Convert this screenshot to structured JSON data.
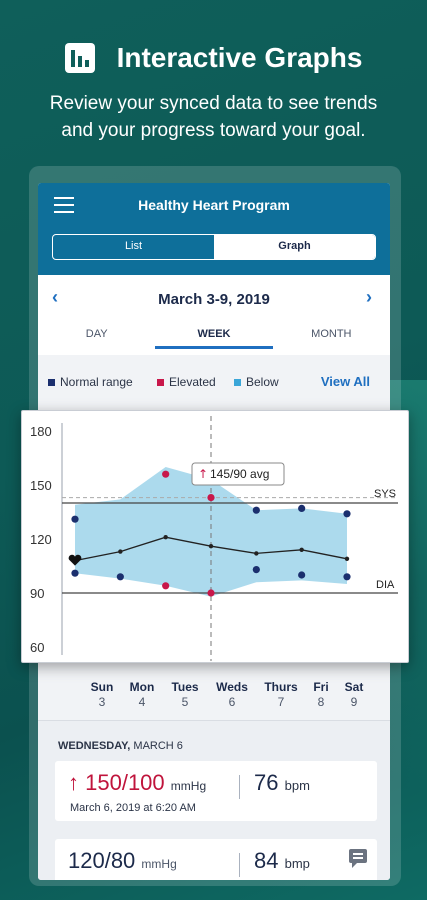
{
  "hero": {
    "title": "Interactive Graphs",
    "subtitle_line1": "Review your synced data to see trends",
    "subtitle_line2": "and your progress toward your goal."
  },
  "app": {
    "title": "Healthy Heart Program",
    "segments": {
      "list": "List",
      "graph": "Graph",
      "selected": "Graph"
    },
    "date_range": "March 3-9, 2019",
    "tabs": [
      "DAY",
      "WEEK",
      "MONTH"
    ],
    "active_tab": "WEEK",
    "legend": [
      {
        "label": "Normal range",
        "color": "#1b2f6e"
      },
      {
        "label": "Elevated",
        "color": "#c8174a"
      },
      {
        "label": "Below",
        "color": "#3aa6d8"
      }
    ],
    "view_all": "View All",
    "days": [
      {
        "name": "Sun",
        "date": "3"
      },
      {
        "name": "Mon",
        "date": "4"
      },
      {
        "name": "Tues",
        "date": "5"
      },
      {
        "name": "Weds",
        "date": "6"
      },
      {
        "name": "Thurs",
        "date": "7"
      },
      {
        "name": "Fri",
        "date": "8"
      },
      {
        "name": "Sat",
        "date": "9"
      }
    ],
    "detail": {
      "header_day": "WEDNESDAY,",
      "header_date": "MARCH 6",
      "reading1": {
        "bp": "150/100",
        "unit": "mmHg",
        "pulse": "76",
        "pulse_unit": "bpm",
        "timestamp": "March 6, 2019 at 6:20 AM"
      },
      "reading2": {
        "bp": "120/80",
        "unit": "mmHg",
        "pulse": "84",
        "pulse_unit": "bmp"
      }
    }
  },
  "chart_data": {
    "type": "line",
    "y_ticks": [
      "180",
      "150",
      "120",
      "90",
      "60"
    ],
    "ylim": [
      60,
      180
    ],
    "x_count": 7,
    "sys_label": "SYS",
    "dia_label": "DIA",
    "sys_threshold": 140,
    "dia_threshold": 90,
    "goal_line": 143,
    "band_top": [
      139,
      142,
      160,
      153,
      136,
      137,
      134
    ],
    "band_bottom": [
      101,
      98,
      94,
      88,
      96,
      97,
      95
    ],
    "avg_line": [
      108,
      113,
      121,
      116,
      112,
      114,
      109
    ],
    "systolic_points": [
      {
        "x": 0,
        "y": 131,
        "status": "normal"
      },
      {
        "x": 2,
        "y": 156,
        "status": "elevated"
      },
      {
        "x": 3,
        "y": 143,
        "status": "elevated"
      },
      {
        "x": 4,
        "y": 136,
        "status": "normal"
      },
      {
        "x": 5,
        "y": 137,
        "status": "normal"
      },
      {
        "x": 6,
        "y": 134,
        "status": "normal"
      }
    ],
    "diastolic_points": [
      {
        "x": 0,
        "y": 101,
        "status": "normal"
      },
      {
        "x": 1,
        "y": 99,
        "status": "normal"
      },
      {
        "x": 2,
        "y": 94,
        "status": "elevated"
      },
      {
        "x": 3,
        "y": 90,
        "status": "elevated"
      },
      {
        "x": 4,
        "y": 103,
        "status": "normal"
      },
      {
        "x": 5,
        "y": 100,
        "status": "normal"
      },
      {
        "x": 6,
        "y": 99,
        "status": "normal"
      }
    ],
    "heart_marker_y": 108,
    "selected_index": 3,
    "tooltip": "145/90 avg",
    "colors": {
      "band": "#9dd3ea",
      "normal": "#1b2f6e",
      "elevated": "#c8174a",
      "line": "#222222"
    }
  }
}
